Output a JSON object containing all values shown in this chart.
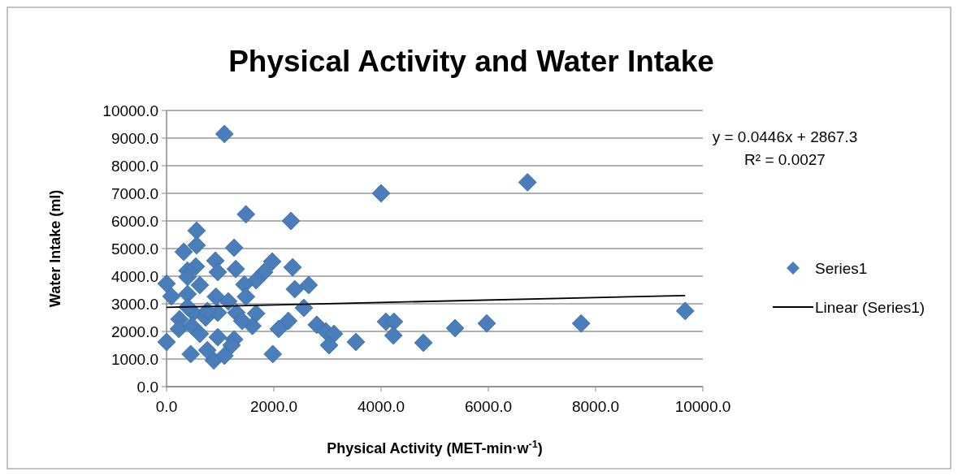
{
  "chart_data": {
    "type": "scatter",
    "title": "Physical Activity and Water Intake",
    "xlabel": "Physical Activity (MET-min·w$^{-1}$)",
    "ylabel": "Water Intake (ml)",
    "xlim": [
      0,
      10000
    ],
    "xticks": [
      {
        "value": 0,
        "label": "0.0"
      },
      {
        "value": 2000,
        "label": "2000.0"
      },
      {
        "value": 4000,
        "label": "4000.0"
      },
      {
        "value": 6000,
        "label": "6000.0"
      },
      {
        "value": 8000,
        "label": "8000.0"
      },
      {
        "value": 10000,
        "label": "10000.0"
      }
    ],
    "ylim": [
      0,
      10000
    ],
    "yticks": [
      {
        "value": 0,
        "label": "0.0"
      },
      {
        "value": 1000,
        "label": "1000.0"
      },
      {
        "value": 2000,
        "label": "2000.0"
      },
      {
        "value": 3000,
        "label": "3000.0"
      },
      {
        "value": 4000,
        "label": "4000.0"
      },
      {
        "value": 5000,
        "label": "5000.0"
      },
      {
        "value": 6000,
        "label": "6000.0"
      },
      {
        "value": 7000,
        "label": "7000.0"
      },
      {
        "value": 8000,
        "label": "8000.0"
      },
      {
        "value": 9000,
        "label": "9000.0"
      },
      {
        "value": 10000,
        "label": "10000.0"
      }
    ],
    "grid": "y",
    "legend": "right",
    "annotations": [
      "y = 0.0446x + 2867.3",
      "R² = 0.0027"
    ],
    "series": [
      {
        "name": "Series1",
        "marker": "diamond",
        "color": "#4a7ebb",
        "x": [
          1080,
          6730,
          4000,
          1480,
          2320,
          560,
          560,
          320,
          1260,
          910,
          545,
          390,
          955,
          1290,
          1970,
          2350,
          1820,
          1670,
          1450,
          0,
          390,
          620,
          90,
          390,
          920,
          1480,
          1150,
          2390,
          2650,
          2560,
          1300,
          955,
          240,
          500,
          730,
          2270,
          2090,
          1600,
          1410,
          2800,
          2970,
          3120,
          3030,
          3530,
          0,
          230,
          470,
          620,
          955,
          1260,
          1210,
          450,
          880,
          1080,
          1980,
          760,
          390,
          760,
          1670,
          4090,
          4240,
          4230,
          4790,
          5380,
          5970,
          7730,
          9670
        ],
        "values": [
          9150,
          7400,
          7000,
          6240,
          6000,
          5650,
          5120,
          4880,
          5030,
          4560,
          4350,
          4200,
          4150,
          4260,
          4530,
          4320,
          4150,
          3850,
          3700,
          3730,
          3970,
          3680,
          3270,
          3350,
          3260,
          3260,
          3090,
          3530,
          3680,
          2850,
          2680,
          2680,
          2440,
          2680,
          2500,
          2380,
          2090,
          2200,
          2380,
          2240,
          2000,
          1910,
          1500,
          1620,
          1620,
          2090,
          2200,
          1910,
          1790,
          1710,
          1500,
          1180,
          950,
          1120,
          1180,
          1320,
          2880,
          2740,
          2650,
          2350,
          2350,
          1850,
          1590,
          2120,
          2290,
          2290,
          2740
        ]
      },
      {
        "name": "Linear (Series1)",
        "type": "line",
        "color": "#000000",
        "x": [
          0,
          9670
        ],
        "values": [
          2870,
          3300
        ]
      }
    ]
  }
}
